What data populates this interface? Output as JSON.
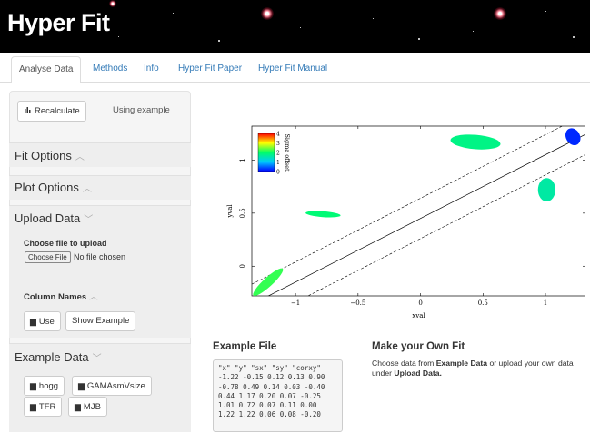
{
  "app": {
    "title": "Hyper Fit"
  },
  "tabs": [
    "Analyse Data",
    "Methods",
    "Info",
    "Hyper Fit Paper",
    "Hyper Fit Manual"
  ],
  "sidebar": {
    "recalculate_label": "Recalculate",
    "using_text": "Using example",
    "fit_options": "Fit Options",
    "plot_options": "Plot Options",
    "upload_data": "Upload Data",
    "choose_file_label": "Choose file to upload",
    "choose_file_button": "Choose File",
    "no_file_text": "No file chosen",
    "column_names": "Column Names",
    "use_label": "Use",
    "show_example_label": "Show Example",
    "example_data": "Example Data",
    "examples": [
      "hogg",
      "GAMAsmVsize",
      "TFR",
      "MJB"
    ]
  },
  "icons": {
    "chart": "bar-chart-icon",
    "file": "file-icon",
    "chevron_up": "chevron-up-icon",
    "chevron_down": "chevron-down-icon"
  },
  "plot": {
    "xlabel": "xval",
    "ylabel": "yval",
    "colorbar_label": "Sigma offset",
    "colorbar_ticks": [
      "4",
      "3",
      "2",
      "1",
      "0"
    ],
    "x_ticks": [
      "−1",
      "−0.5",
      "0",
      "0.5",
      "1"
    ],
    "y_ticks": [
      "0",
      "0.5",
      "1"
    ]
  },
  "example_file": {
    "heading": "Example File",
    "lines": [
      "\"x\" \"y\" \"sx\" \"sy\" \"corxy\"",
      "-1.22 -0.15 0.12 0.13 0.90",
      "-0.78 0.49 0.14 0.03 -0.40",
      "0.44 1.17 0.20 0.07 -0.25",
      "1.01 0.72 0.07 0.11 0.00",
      "1.22 1.22 0.06 0.08 -0.20"
    ]
  },
  "own_fit": {
    "heading": "Make your Own Fit",
    "text_1": "Choose data from ",
    "bold_1": "Example Data",
    "text_2": " or upload your own data under ",
    "bold_2": "Upload Data."
  },
  "colors": {
    "accent": "#337ab7",
    "banner": "#000000"
  },
  "chart_data": {
    "type": "scatter",
    "xlabel": "xval",
    "ylabel": "yval",
    "xlim": [
      -1.35,
      1.32
    ],
    "ylim": [
      -0.28,
      1.32
    ],
    "x": [
      -1.22,
      -0.78,
      0.44,
      1.01,
      1.22
    ],
    "y": [
      -0.15,
      0.49,
      1.17,
      0.72,
      1.22
    ],
    "sx": [
      0.12,
      0.14,
      0.2,
      0.07,
      0.06
    ],
    "sy": [
      0.13,
      0.03,
      0.07,
      0.11,
      0.08
    ],
    "corxy": [
      0.9,
      -0.4,
      -0.25,
      0.0,
      -0.2
    ],
    "sigma_offset": [
      2.2,
      1.9,
      1.8,
      1.6,
      0.2
    ],
    "fit_line": {
      "intercept": 0.45,
      "slope": 0.6
    },
    "scatter_band": 0.19,
    "colorbar_range": [
      0,
      4
    ],
    "x_ticks": [
      -1,
      -0.5,
      0,
      0.5,
      1
    ],
    "y_ticks": [
      0,
      0.5,
      1
    ]
  }
}
